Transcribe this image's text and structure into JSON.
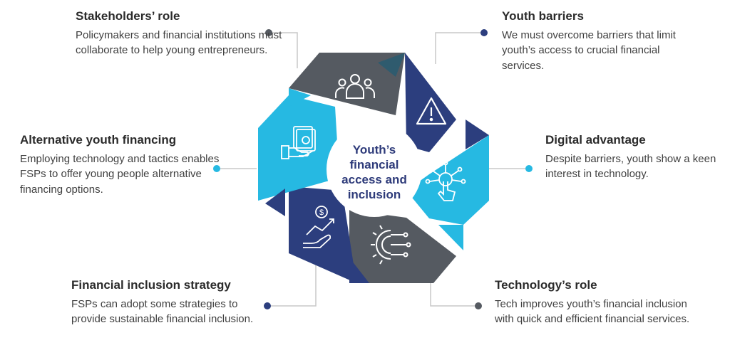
{
  "center": {
    "lines": [
      "Youth’s",
      "financial",
      "access and",
      "inclusion"
    ]
  },
  "blocks": {
    "stakeholders": {
      "title": "Stakeholders’ role",
      "text": "Policymakers and financial institutions must collaborate to help young entrepreneurs."
    },
    "alternative": {
      "title": "Alternative youth financing",
      "text": "Employing technology and tactics enables FSPs to offer young people alternative financing options."
    },
    "strategy": {
      "title": "Financial inclusion strategy",
      "text": "FSPs can adopt some strategies to provide sustainable financial inclusion."
    },
    "barriers": {
      "title": "Youth barriers",
      "text": "We must overcome barriers that limit youth’s access to crucial financial services."
    },
    "digital": {
      "title": "Digital advantage",
      "text": "Despite barriers, youth show a keen interest in technology."
    },
    "technology": {
      "title": "Technology’s role",
      "text": "Tech improves youth’s financial inclusion with quick and efficient financial services."
    }
  },
  "icons": {
    "stakeholders": "people-group-icon",
    "barriers": "warning-icon",
    "digital": "touch-network-icon",
    "technology": "gear-circuit-icon",
    "strategy": "hand-coin-growth-icon",
    "alternative": "cash-hand-icon"
  },
  "colors": {
    "gray": "#555a61",
    "navy": "#2c3e7e",
    "cyan": "#26b9e2",
    "teal": "#2f5b6e",
    "connector_line": "#c8c8c8",
    "dot_dark": "#555a61",
    "dot_navy": "#2c3e7e",
    "dot_cyan": "#26b9e2"
  }
}
